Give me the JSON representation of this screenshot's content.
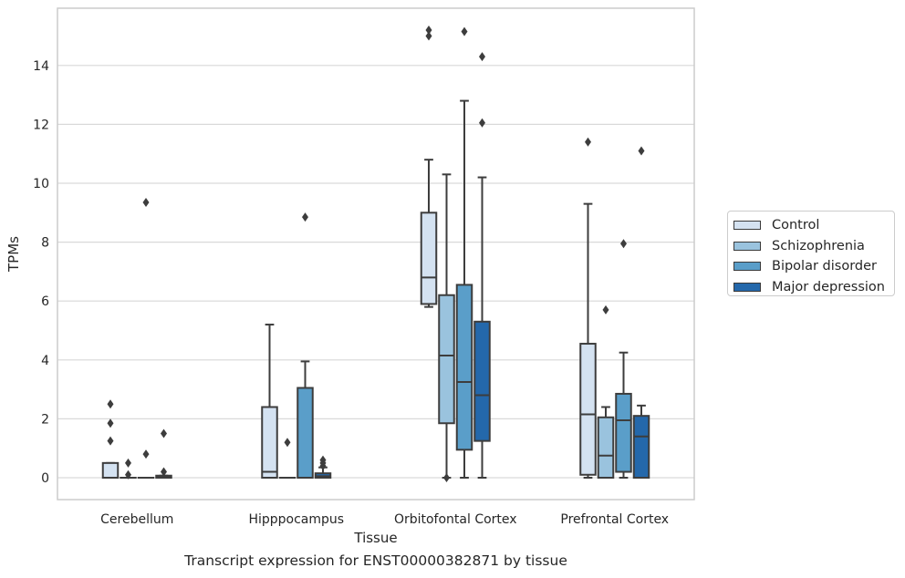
{
  "caption": "Transcript expression for ENST00000382871 by tissue",
  "chart_data": {
    "type": "box",
    "xlabel": "Tissue",
    "ylabel": "TPMs",
    "ylim": [
      -0.7,
      15.9
    ],
    "yticks": [
      0,
      2,
      4,
      6,
      8,
      10,
      12,
      14
    ],
    "grid": true,
    "legend_position": "right",
    "categories": [
      "Cerebellum",
      "Hipppocampus",
      "Orbitofontal Cortex",
      "Prefrontal Cortex"
    ],
    "series": [
      {
        "name": "Control",
        "color": "#d4e2f1",
        "boxes": [
          {
            "min": 0,
            "q1": 0,
            "median": 0,
            "q3": 0.5,
            "max": 0.5,
            "outliers": [
              2.5,
              1.85,
              1.25
            ]
          },
          {
            "min": 0,
            "q1": 0,
            "median": 0.2,
            "q3": 2.4,
            "max": 5.2,
            "outliers": []
          },
          {
            "min": 5.8,
            "q1": 5.9,
            "median": 6.8,
            "q3": 9.0,
            "max": 10.8,
            "outliers": [
              15.2,
              15.0
            ]
          },
          {
            "min": 0,
            "q1": 0.1,
            "median": 2.15,
            "q3": 4.55,
            "max": 9.3,
            "outliers": [
              11.4
            ]
          }
        ]
      },
      {
        "name": "Schizophrenia",
        "color": "#9ac3de",
        "boxes": [
          {
            "min": 0,
            "q1": 0,
            "median": 0,
            "q3": 0,
            "max": 0,
            "outliers": [
              0.5,
              0.1
            ]
          },
          {
            "min": 0,
            "q1": 0,
            "median": 0,
            "q3": 0,
            "max": 0,
            "outliers": [
              1.2
            ]
          },
          {
            "min": 0,
            "q1": 1.85,
            "median": 4.15,
            "q3": 6.2,
            "max": 10.3,
            "outliers": [
              0
            ]
          },
          {
            "min": 0,
            "q1": 0,
            "median": 0.75,
            "q3": 2.05,
            "max": 2.4,
            "outliers": [
              5.7
            ]
          }
        ]
      },
      {
        "name": "Bipolar disorder",
        "color": "#5a9ec9",
        "boxes": [
          {
            "min": 0,
            "q1": 0,
            "median": 0,
            "q3": 0,
            "max": 0,
            "outliers": [
              9.35,
              0.8
            ]
          },
          {
            "min": 0,
            "q1": 0,
            "median": 0,
            "q3": 3.05,
            "max": 3.95,
            "outliers": [
              8.85
            ]
          },
          {
            "min": 0,
            "q1": 0.95,
            "median": 3.25,
            "q3": 6.55,
            "max": 12.8,
            "outliers": [
              15.15
            ]
          },
          {
            "min": 0,
            "q1": 0.2,
            "median": 1.95,
            "q3": 2.85,
            "max": 4.25,
            "outliers": [
              7.95
            ]
          }
        ]
      },
      {
        "name": "Major depression",
        "color": "#2468ab",
        "boxes": [
          {
            "min": 0,
            "q1": 0,
            "median": 0.03,
            "q3": 0.07,
            "max": 0.07,
            "outliers": [
              1.5,
              0.2
            ]
          },
          {
            "min": 0,
            "q1": 0,
            "median": 0.05,
            "q3": 0.15,
            "max": 0.35,
            "outliers": [
              0.6,
              0.5,
              0.4
            ]
          },
          {
            "min": 0,
            "q1": 1.25,
            "median": 2.8,
            "q3": 5.3,
            "max": 10.2,
            "outliers": [
              14.3,
              12.05
            ]
          },
          {
            "min": 0,
            "q1": 0,
            "median": 1.4,
            "q3": 2.1,
            "max": 2.45,
            "outliers": [
              11.1
            ]
          }
        ]
      }
    ]
  }
}
